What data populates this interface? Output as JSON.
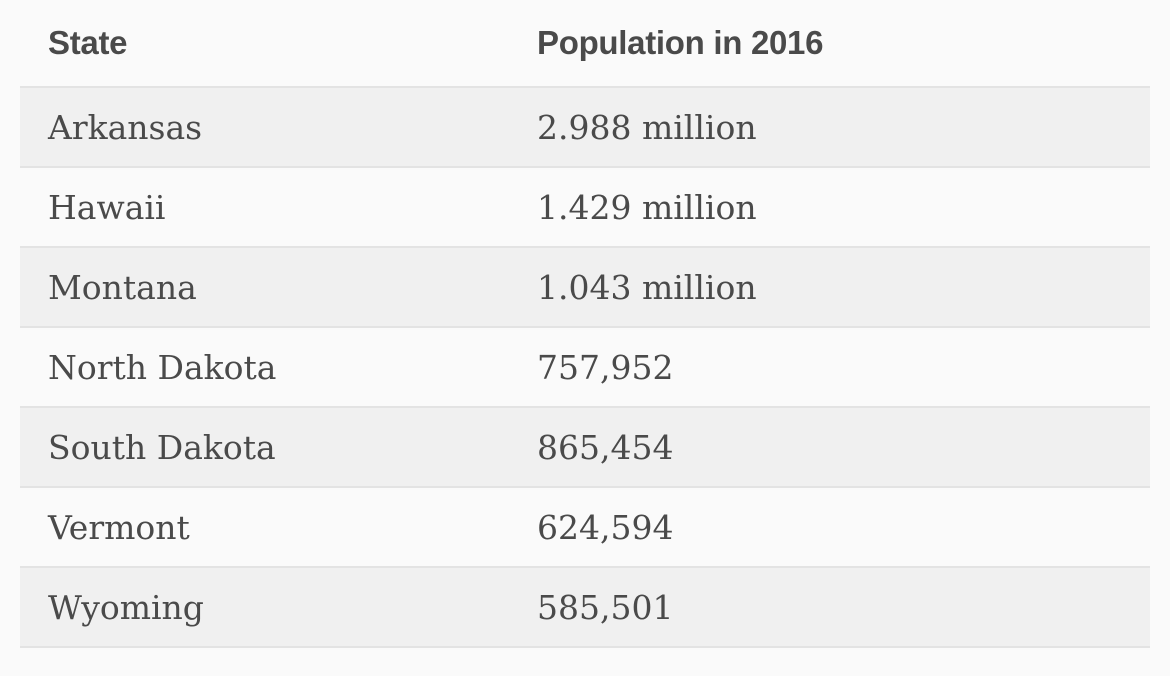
{
  "table": {
    "headers": {
      "state": "State",
      "population": "Population in 2016"
    },
    "rows": [
      {
        "state": "Arkansas",
        "population": "2.988 million"
      },
      {
        "state": "Hawaii",
        "population": "1.429 million"
      },
      {
        "state": "Montana",
        "population": "1.043 million"
      },
      {
        "state": "North Dakota",
        "population": "757,952"
      },
      {
        "state": "South Dakota",
        "population": "865,454"
      },
      {
        "state": "Vermont",
        "population": "624,594"
      },
      {
        "state": "Wyoming",
        "population": "585,501"
      }
    ]
  }
}
